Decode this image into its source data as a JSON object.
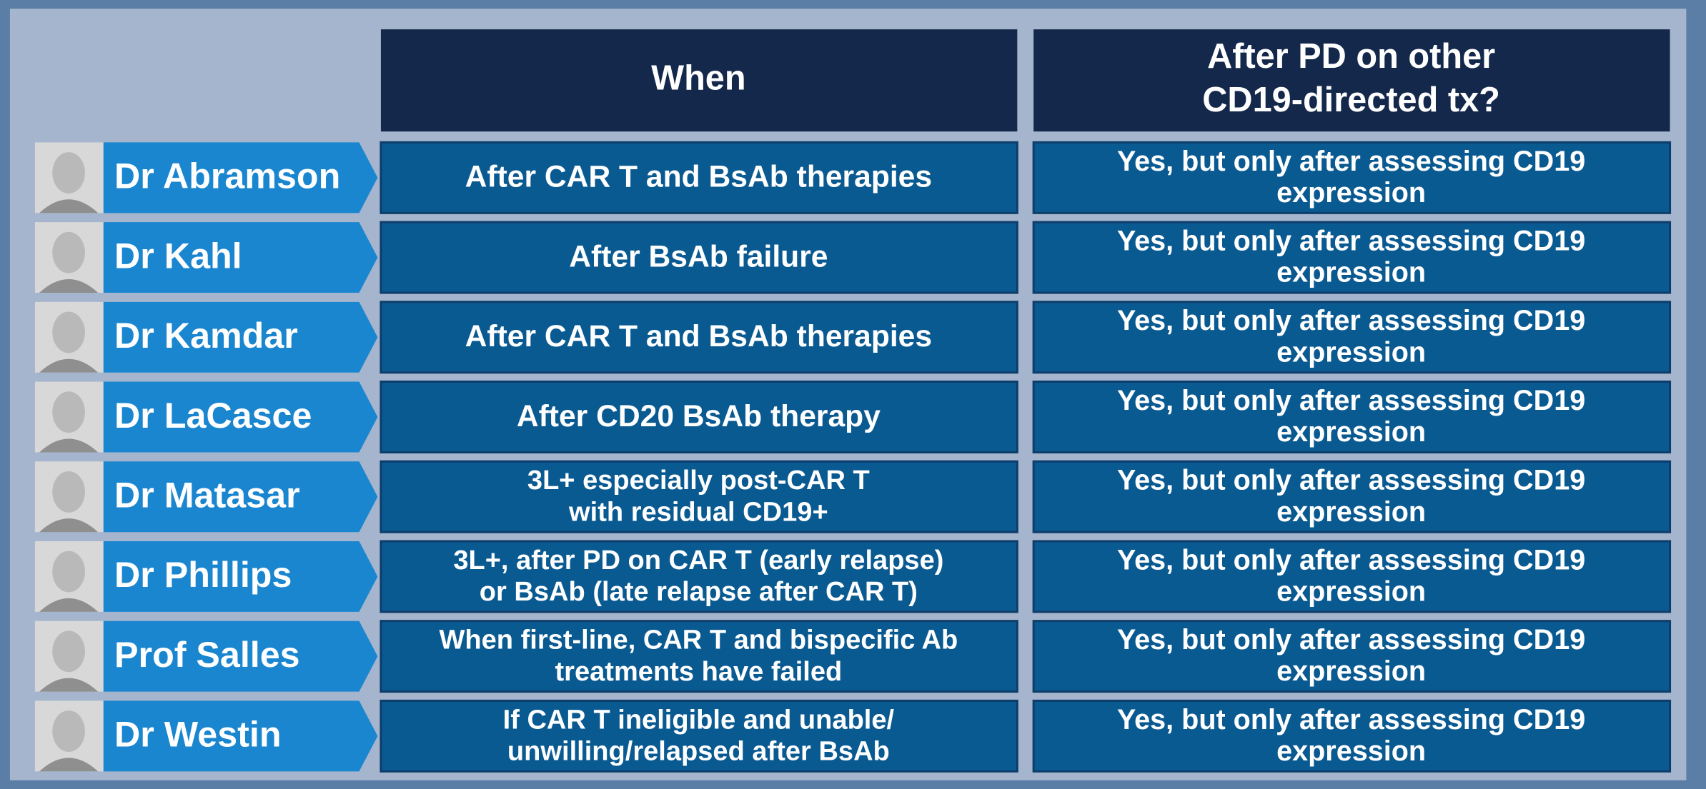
{
  "table": {
    "headers": {
      "when": [
        "When"
      ],
      "response": [
        "After PD on other",
        "CD19-directed tx?"
      ]
    },
    "rows": [
      {
        "name": "Dr Abramson",
        "when": [
          "After CAR T and BsAb therapies"
        ],
        "response": [
          "Yes, but only after assessing CD19",
          "expression"
        ]
      },
      {
        "name": "Dr Kahl",
        "when": [
          "After BsAb failure"
        ],
        "response": [
          "Yes, but only after assessing CD19",
          "expression"
        ]
      },
      {
        "name": "Dr Kamdar",
        "when": [
          "After CAR T and BsAb therapies"
        ],
        "response": [
          "Yes, but only after assessing CD19",
          "expression"
        ]
      },
      {
        "name": "Dr LaCasce",
        "when": [
          "After CD20 BsAb therapy"
        ],
        "response": [
          "Yes, but only after assessing CD19",
          "expression"
        ]
      },
      {
        "name": "Dr Matasar",
        "when": [
          "3L+ especially post-CAR T",
          "with residual CD19+"
        ],
        "response": [
          "Yes, but only after assessing CD19",
          "expression"
        ]
      },
      {
        "name": "Dr Phillips",
        "when": [
          "3L+, after PD on CAR T (early relapse)",
          "or BsAb (late relapse after CAR T)"
        ],
        "response": [
          "Yes, but only after assessing CD19",
          "expression"
        ]
      },
      {
        "name": "Prof Salles",
        "when": [
          "When first-line, CAR T and bispecific Ab",
          "treatments have failed"
        ],
        "response": [
          "Yes, but only after assessing CD19",
          "expression"
        ]
      },
      {
        "name": "Dr Westin",
        "when": [
          "If CAR T ineligible and unable/",
          "unwilling/relapsed after BsAb"
        ],
        "response": [
          "Yes, but only after assessing CD19",
          "expression"
        ]
      }
    ]
  }
}
